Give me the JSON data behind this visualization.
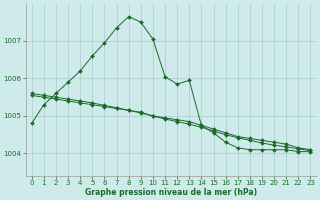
{
  "title": "Graphe pression niveau de la mer (hPa)",
  "background_color": "#ceeaea",
  "grid_color": "#a8cccc",
  "line_color": "#1a6b2a",
  "xlim": [
    -0.5,
    23.5
  ],
  "ylim": [
    1003.4,
    1008.0
  ],
  "yticks": [
    1004,
    1005,
    1006,
    1007
  ],
  "xticks": [
    0,
    1,
    2,
    3,
    4,
    5,
    6,
    7,
    8,
    9,
    10,
    11,
    12,
    13,
    14,
    15,
    16,
    17,
    18,
    19,
    20,
    21,
    22,
    23
  ],
  "series": [
    {
      "x": [
        0,
        1,
        2,
        3,
        4,
        5,
        6,
        7,
        8,
        9,
        10,
        11,
        12,
        13,
        14,
        15,
        16,
        17,
        18,
        19,
        20,
        21,
        22,
        23
      ],
      "y": [
        1004.8,
        1005.3,
        1005.6,
        1005.9,
        1006.2,
        1006.6,
        1006.95,
        1007.35,
        1007.65,
        1007.5,
        1007.05,
        1006.05,
        1005.85,
        1005.95,
        1004.75,
        1004.55,
        1004.3,
        1004.15,
        1004.1,
        1004.1,
        1004.1,
        1004.1,
        1004.05,
        1004.05
      ]
    },
    {
      "x": [
        0,
        1,
        2,
        3,
        4,
        5,
        6,
        7,
        8,
        9,
        10,
        11,
        12,
        13,
        14,
        15,
        16,
        17,
        18,
        19,
        20,
        21,
        22,
        23
      ],
      "y": [
        1005.55,
        1005.5,
        1005.45,
        1005.4,
        1005.35,
        1005.3,
        1005.25,
        1005.2,
        1005.15,
        1005.1,
        1005.0,
        1004.95,
        1004.9,
        1004.85,
        1004.75,
        1004.65,
        1004.55,
        1004.45,
        1004.4,
        1004.35,
        1004.3,
        1004.25,
        1004.15,
        1004.1
      ]
    },
    {
      "x": [
        0,
        1,
        2,
        3,
        4,
        5,
        6,
        7,
        8,
        9,
        10,
        11,
        12,
        13,
        14,
        15,
        16,
        17,
        18,
        19,
        20,
        21,
        22,
        23
      ],
      "y": [
        1005.6,
        1005.55,
        1005.5,
        1005.45,
        1005.4,
        1005.35,
        1005.28,
        1005.22,
        1005.15,
        1005.08,
        1005.0,
        1004.92,
        1004.85,
        1004.78,
        1004.7,
        1004.6,
        1004.5,
        1004.42,
        1004.35,
        1004.28,
        1004.22,
        1004.18,
        1004.12,
        1004.08
      ]
    }
  ]
}
